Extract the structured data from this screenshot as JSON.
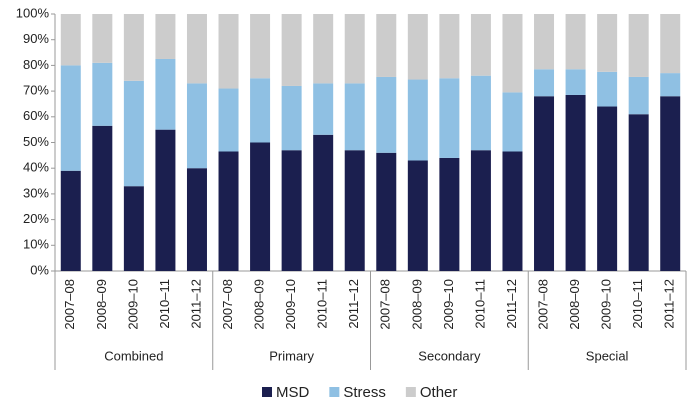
{
  "chart_data": {
    "type": "stacked-bar",
    "categories": [
      "2007–08",
      "2008–09",
      "2009–10",
      "2010–11",
      "2011–12",
      "2007–08",
      "2008–09",
      "2009–10",
      "2010–11",
      "2011–12",
      "2007–08",
      "2008–09",
      "2009–10",
      "2010–11",
      "2011–12",
      "2007–08",
      "2008–09",
      "2009–10",
      "2010–11",
      "2011–12"
    ],
    "groups": [
      "Combined",
      "Primary",
      "Secondary",
      "Special"
    ],
    "series": [
      {
        "name": "MSD",
        "color": "#1b1f4f",
        "values": [
          39,
          56.5,
          33,
          55,
          40,
          46.5,
          50,
          47,
          53,
          47,
          46,
          43,
          44,
          47,
          46.5,
          68,
          68.5,
          64,
          61,
          68
        ]
      },
      {
        "name": "Stress",
        "color": "#8fc0e3",
        "values": [
          41,
          24.5,
          41,
          27.5,
          33,
          24.5,
          25,
          25,
          20,
          26,
          29.5,
          31.5,
          31,
          29,
          23,
          10.5,
          10,
          13.5,
          14.5,
          9
        ]
      },
      {
        "name": "Other",
        "color": "#cccccc",
        "values": [
          20,
          19,
          26,
          17.5,
          27,
          29,
          25,
          28,
          27,
          27,
          24.5,
          25.5,
          25,
          24,
          30.5,
          21.5,
          21.5,
          22.5,
          24.5,
          23
        ]
      }
    ],
    "ylim": [
      0,
      100
    ],
    "yticks": [
      {
        "value": 0,
        "label": "0%"
      },
      {
        "value": 10,
        "label": "10%"
      },
      {
        "value": 20,
        "label": "20%"
      },
      {
        "value": 30,
        "label": "30%"
      },
      {
        "value": 40,
        "label": "40%"
      },
      {
        "value": 50,
        "label": "50%"
      },
      {
        "value": 60,
        "label": "60%"
      },
      {
        "value": 70,
        "label": "70%"
      },
      {
        "value": 80,
        "label": "80%"
      },
      {
        "value": 90,
        "label": "90%"
      },
      {
        "value": 100,
        "label": "100%"
      }
    ],
    "legend": "bottom"
  }
}
